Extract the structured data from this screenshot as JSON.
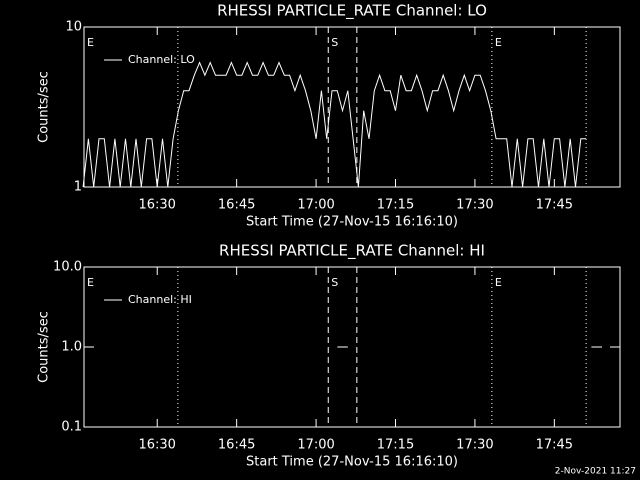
{
  "chart_data": [
    {
      "type": "line",
      "title": "RHESSI PARTICLE_RATE Channel: LO",
      "xlabel": "Start Time (27-Nov-15 16:16:10)",
      "ylabel": "Counts/sec",
      "log_y": true,
      "x": [
        976,
        977,
        978,
        979,
        980,
        981,
        982,
        983,
        984,
        985,
        986,
        987,
        988,
        989,
        990,
        991,
        992,
        993,
        994,
        995,
        996,
        997,
        998,
        999,
        1000,
        1001,
        1002,
        1003,
        1004,
        1005,
        1006,
        1007,
        1008,
        1009,
        1010,
        1011,
        1012,
        1013,
        1014,
        1015,
        1016,
        1017,
        1018,
        1019,
        1020,
        1021,
        1022,
        1023,
        1024,
        1025,
        1026,
        1027,
        1028,
        1029,
        1030,
        1031,
        1032,
        1033,
        1034,
        1035,
        1036,
        1037,
        1038,
        1039,
        1040,
        1041,
        1042,
        1043,
        1044,
        1045,
        1046,
        1047,
        1048,
        1049,
        1050,
        1051,
        1052,
        1053,
        1054,
        1055,
        1056,
        1057,
        1058,
        1059,
        1060,
        1061,
        1062,
        1063,
        1064,
        1065,
        1066,
        1067,
        1068,
        1069,
        1070,
        1071
      ],
      "series": [
        {
          "name": "Channel: LO",
          "color": "#ffffff",
          "values": [
            1,
            2,
            1,
            2,
            2,
            1,
            2,
            1,
            2,
            1,
            2,
            1,
            2,
            2,
            1,
            2,
            1,
            2,
            3,
            4,
            4,
            5,
            6,
            5,
            6,
            5,
            5,
            5,
            6,
            5,
            5,
            6,
            5,
            5,
            6,
            5,
            5,
            6,
            5,
            5,
            4,
            5,
            4,
            3,
            2,
            4,
            2,
            4,
            4,
            3,
            4,
            2,
            1,
            3,
            2,
            4,
            5,
            4,
            4,
            3,
            5,
            4,
            4,
            5,
            4,
            3,
            4,
            4,
            5,
            4,
            3,
            4,
            5,
            4,
            5,
            5,
            4,
            3,
            2,
            2,
            2,
            1,
            2,
            1,
            2,
            2,
            1,
            2,
            1,
            2,
            2,
            1,
            2,
            1,
            2,
            2
          ]
        }
      ],
      "xlim": [
        976.17,
        1077.4
      ],
      "ylim": [
        1,
        10
      ],
      "yticks": [
        1,
        10
      ],
      "xticks": [
        {
          "value": 990,
          "label": "16:30"
        },
        {
          "value": 1005,
          "label": "16:45"
        },
        {
          "value": 1020,
          "label": "17:00"
        },
        {
          "value": 1035,
          "label": "17:15"
        },
        {
          "value": 1050,
          "label": "17:30"
        },
        {
          "value": 1065,
          "label": "17:45"
        }
      ],
      "vlines": [
        {
          "x": 993.9,
          "style": "dotted"
        },
        {
          "x": 1022.3,
          "style": "dashed"
        },
        {
          "x": 1027.7,
          "style": "dashed"
        },
        {
          "x": 1053.2,
          "style": "dotted"
        },
        {
          "x": 1071,
          "style": "dotted"
        }
      ],
      "annotations": [
        {
          "text": "E",
          "x": 976.17
        },
        {
          "text": "S",
          "x": 1022.3
        },
        {
          "text": "E",
          "x": 1053.2
        }
      ]
    },
    {
      "type": "line",
      "title": "RHESSI PARTICLE_RATE Channel: HI",
      "xlabel": "Start Time (27-Nov-15 16:16:10)",
      "ylabel": "Counts/sec",
      "log_y": true,
      "x": [
        1024,
        1026,
        1050,
        1072,
        1074
      ],
      "series": [
        {
          "name": "Channel: HI",
          "color": "#ffffff",
          "values": [
            1,
            1,
            null,
            1,
            1
          ]
        }
      ],
      "xlim": [
        976.17,
        1077.4
      ],
      "ylim": [
        0.1,
        10
      ],
      "yticks": [
        {
          "value": 0.1,
          "label": "0.1"
        },
        {
          "value": 1,
          "label": "1.0"
        },
        {
          "value": 10,
          "label": "10.0"
        }
      ],
      "xticks": [
        {
          "value": 990,
          "label": "16:30"
        },
        {
          "value": 1005,
          "label": "16:45"
        },
        {
          "value": 1020,
          "label": "17:00"
        },
        {
          "value": 1035,
          "label": "17:15"
        },
        {
          "value": 1050,
          "label": "17:30"
        },
        {
          "value": 1065,
          "label": "17:45"
        }
      ],
      "vlines": [
        {
          "x": 993.9,
          "style": "dotted"
        },
        {
          "x": 1022.3,
          "style": "dashed"
        },
        {
          "x": 1027.7,
          "style": "dashed"
        },
        {
          "x": 1053.2,
          "style": "dotted"
        },
        {
          "x": 1071,
          "style": "dotted"
        }
      ],
      "annotations": [
        {
          "text": "E",
          "x": 976.17
        },
        {
          "text": "S",
          "x": 1022.3
        },
        {
          "text": "E",
          "x": 1053.2
        }
      ]
    }
  ],
  "footer": "2-Nov-2021 11:27"
}
